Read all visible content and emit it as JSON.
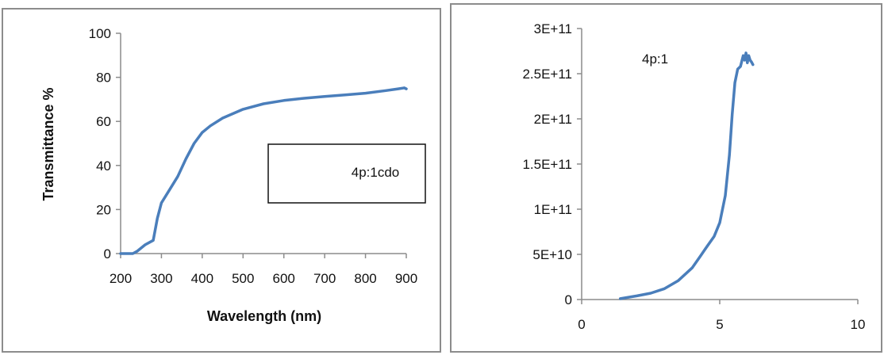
{
  "chart_data": [
    {
      "type": "line",
      "title": "",
      "xlabel": "Wavelength (nm)",
      "ylabel": "Transmittance %",
      "xlim": [
        200,
        900
      ],
      "ylim": [
        0,
        100
      ],
      "x_ticks": [
        "200",
        "300",
        "400",
        "500",
        "600",
        "700",
        "800",
        "900"
      ],
      "y_ticks": [
        "0",
        "20",
        "40",
        "60",
        "80",
        "100"
      ],
      "grid": false,
      "legend": {
        "label": "4p:1cdo",
        "placement": "center-right"
      },
      "series": [
        {
          "name": "4p:1cdo",
          "color": "#4a7ebb",
          "x": [
            200,
            230,
            240,
            260,
            280,
            290,
            300,
            320,
            340,
            360,
            380,
            400,
            420,
            450,
            500,
            550,
            600,
            650,
            700,
            750,
            800,
            850,
            880,
            895,
            900
          ],
          "y": [
            0,
            0,
            1,
            4,
            6,
            16,
            23,
            29,
            35,
            43,
            50,
            55,
            58,
            61.5,
            65.5,
            68,
            69.5,
            70.5,
            71.3,
            72,
            72.8,
            74,
            74.8,
            75.2,
            74.8
          ]
        }
      ]
    },
    {
      "type": "line",
      "title": "",
      "xlabel": "",
      "ylabel": "",
      "xlim": [
        0,
        10
      ],
      "ylim": [
        0,
        300000000000
      ],
      "x_ticks": [
        "0",
        "5",
        "10"
      ],
      "y_ticks": [
        "0",
        "5E+10",
        "1E+11",
        "1.5E+11",
        "2E+11",
        "2.5E+11",
        "3E+11"
      ],
      "grid": false,
      "annotation": "4p:1",
      "series": [
        {
          "color": "#4a7ebb",
          "x": [
            1.4,
            2.0,
            2.5,
            3.0,
            3.5,
            4.0,
            4.3,
            4.5,
            4.8,
            5.0,
            5.2,
            5.35,
            5.45,
            5.55,
            5.65,
            5.75,
            5.85,
            5.9,
            5.95,
            6.0,
            6.05,
            6.1,
            6.15,
            6.2
          ],
          "y": [
            1000000000,
            4000000000,
            7000000000,
            12000000000,
            21000000000,
            35000000000,
            48000000000,
            57000000000,
            70000000000,
            85000000000,
            115000000000,
            160000000000,
            205000000000,
            240000000000,
            255000000000,
            258000000000,
            270000000000,
            265000000000,
            273000000000,
            262000000000,
            270000000000,
            265000000000,
            263000000000,
            260000000000
          ]
        }
      ]
    }
  ]
}
